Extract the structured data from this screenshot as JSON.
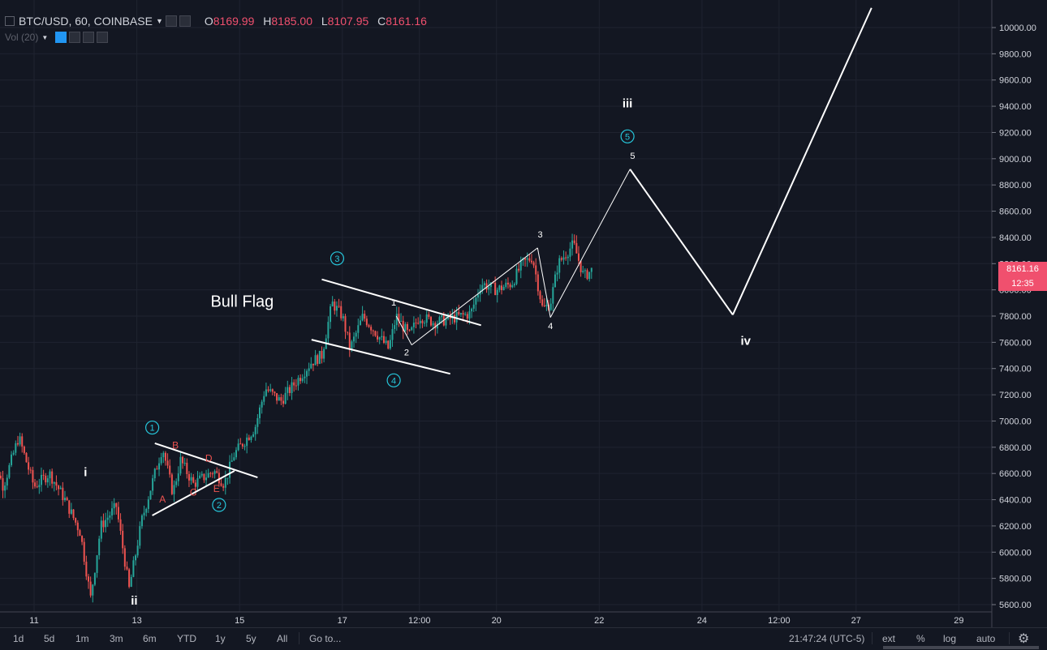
{
  "header": {
    "symbol": "BTC/USD, 60, COINBASE",
    "ohlc": [
      {
        "key": "O",
        "value": "8169.99"
      },
      {
        "key": "H",
        "value": "8185.00"
      },
      {
        "key": "L",
        "value": "8107.95"
      },
      {
        "key": "C",
        "value": "8161.16"
      }
    ]
  },
  "volume_indicator": {
    "label": "Vol (20)"
  },
  "price_label": {
    "value": "8161.16",
    "countdown": "12:35"
  },
  "colors": {
    "background": "#131722",
    "up": "#26a69a",
    "down": "#ef5350",
    "grid": "#1f2330",
    "accent": "#26c6da",
    "label": "#f0506e"
  },
  "bottom_toolbar": {
    "timeframes": [
      "1d",
      "5d",
      "1m",
      "3m",
      "6m",
      "YTD",
      "1y",
      "5y",
      "All"
    ],
    "goto": "Go to...",
    "clock": "21:47:24 (UTC-5)",
    "options": [
      "ext",
      "%",
      "log",
      "auto"
    ],
    "settings_icon": "gear-icon"
  },
  "chart_data": {
    "type": "candlestick",
    "title": "BTC/USD, 60, COINBASE",
    "xlabel": "",
    "ylabel": "",
    "ylim": [
      5560,
      10100
    ],
    "y_ticks": [
      "5600.00",
      "5800.00",
      "6000.00",
      "6200.00",
      "6400.00",
      "6600.00",
      "6800.00",
      "7000.00",
      "7200.00",
      "7400.00",
      "7600.00",
      "7800.00",
      "8000.00",
      "8200.00",
      "8400.00",
      "8600.00",
      "8800.00",
      "9000.00",
      "9200.00",
      "9400.00",
      "9600.00",
      "9800.00",
      "10000.00"
    ],
    "x_ticks": [
      "11",
      "13",
      "15",
      "17",
      "12:00",
      "20",
      "22",
      "24",
      "12:00",
      "27",
      "29"
    ],
    "price_path": [
      {
        "day": 10.1,
        "price": 6850
      },
      {
        "day": 10.4,
        "price": 6500
      },
      {
        "day": 10.7,
        "price": 6880
      },
      {
        "day": 11.0,
        "price": 6500
      },
      {
        "day": 11.3,
        "price": 6600
      },
      {
        "day": 11.6,
        "price": 6400
      },
      {
        "day": 11.9,
        "price": 6150
      },
      {
        "day": 12.1,
        "price": 5650
      },
      {
        "day": 12.3,
        "price": 6200
      },
      {
        "day": 12.6,
        "price": 6350
      },
      {
        "day": 12.85,
        "price": 5720
      },
      {
        "day": 13.1,
        "price": 6250
      },
      {
        "day": 13.35,
        "price": 6600
      },
      {
        "day": 13.5,
        "price": 6800
      },
      {
        "day": 13.7,
        "price": 6450
      },
      {
        "day": 13.85,
        "price": 6700
      },
      {
        "day": 14.1,
        "price": 6520
      },
      {
        "day": 14.5,
        "price": 6620
      },
      {
        "day": 14.7,
        "price": 6520
      },
      {
        "day": 14.9,
        "price": 6750
      },
      {
        "day": 15.3,
        "price": 6950
      },
      {
        "day": 15.5,
        "price": 7250
      },
      {
        "day": 15.8,
        "price": 7150
      },
      {
        "day": 16.1,
        "price": 7300
      },
      {
        "day": 16.4,
        "price": 7450
      },
      {
        "day": 16.6,
        "price": 7500
      },
      {
        "day": 16.8,
        "price": 7900
      },
      {
        "day": 17.0,
        "price": 7800
      },
      {
        "day": 17.15,
        "price": 7550
      },
      {
        "day": 17.4,
        "price": 7800
      },
      {
        "day": 17.6,
        "price": 7700
      },
      {
        "day": 17.9,
        "price": 7550
      },
      {
        "day": 18.05,
        "price": 7800
      },
      {
        "day": 18.3,
        "price": 7650
      },
      {
        "day": 18.5,
        "price": 7800
      },
      {
        "day": 18.8,
        "price": 7750
      },
      {
        "day": 19.1,
        "price": 7780
      },
      {
        "day": 19.5,
        "price": 7820
      },
      {
        "day": 19.7,
        "price": 8050
      },
      {
        "day": 20.0,
        "price": 8000
      },
      {
        "day": 20.3,
        "price": 8050
      },
      {
        "day": 20.5,
        "price": 8200
      },
      {
        "day": 20.7,
        "price": 8250
      },
      {
        "day": 20.9,
        "price": 7850
      },
      {
        "day": 21.05,
        "price": 7900
      },
      {
        "day": 21.2,
        "price": 8200
      },
      {
        "day": 21.5,
        "price": 8350
      },
      {
        "day": 21.7,
        "price": 8100
      },
      {
        "day": 21.85,
        "price": 8150
      }
    ],
    "trendlines": [
      {
        "from": {
          "day": 13.3,
          "price": 6280
        },
        "to": {
          "day": 14.9,
          "price": 6620
        }
      },
      {
        "from": {
          "day": 13.35,
          "price": 6830
        },
        "to": {
          "day": 15.35,
          "price": 6570
        }
      },
      {
        "from": {
          "day": 16.4,
          "price": 7620
        },
        "to": {
          "day": 19.1,
          "price": 7360
        }
      },
      {
        "from": {
          "day": 16.6,
          "price": 8080
        },
        "to": {
          "day": 19.7,
          "price": 7730
        }
      }
    ],
    "wave_path": [
      {
        "day": 18.05,
        "price": 7800
      },
      {
        "day": 18.35,
        "price": 7580
      },
      {
        "day": 20.8,
        "price": 8320
      },
      {
        "day": 21.05,
        "price": 7790
      },
      {
        "day": 22.6,
        "price": 8920
      },
      {
        "day": 24.6,
        "price": 7810
      },
      {
        "day": 27.3,
        "price": 10150
      }
    ],
    "annotations": [
      {
        "text": "Bull Flag",
        "day": 15.05,
        "price": 7870,
        "style": "title"
      },
      {
        "text": "i",
        "day": 12.0,
        "price": 6580,
        "style": "wave-roman"
      },
      {
        "text": "ii",
        "day": 12.95,
        "price": 5600,
        "style": "wave-roman"
      },
      {
        "text": "iii",
        "day": 22.55,
        "price": 9390,
        "style": "wave-roman"
      },
      {
        "text": "iv",
        "day": 24.85,
        "price": 7580,
        "style": "wave-roman"
      },
      {
        "text": "1",
        "day": 13.3,
        "price": 6950,
        "style": "wave-circle"
      },
      {
        "text": "2",
        "day": 14.6,
        "price": 6360,
        "style": "wave-circle"
      },
      {
        "text": "3",
        "day": 16.9,
        "price": 8240,
        "style": "wave-circle"
      },
      {
        "text": "4",
        "day": 18.0,
        "price": 7310,
        "style": "wave-circle"
      },
      {
        "text": "5",
        "day": 22.55,
        "price": 9170,
        "style": "wave-circle"
      },
      {
        "text": "A",
        "day": 13.5,
        "price": 6380,
        "style": "flag-letter"
      },
      {
        "text": "B",
        "day": 13.75,
        "price": 6790,
        "style": "flag-letter"
      },
      {
        "text": "C",
        "day": 14.1,
        "price": 6430,
        "style": "flag-letter"
      },
      {
        "text": "D",
        "day": 14.4,
        "price": 6690,
        "style": "flag-letter"
      },
      {
        "text": "E",
        "day": 14.55,
        "price": 6460,
        "style": "flag-letter"
      },
      {
        "text": "1",
        "day": 18.0,
        "price": 7880,
        "style": "wave-number"
      },
      {
        "text": "2",
        "day": 18.25,
        "price": 7500,
        "style": "wave-number"
      },
      {
        "text": "3",
        "day": 20.85,
        "price": 8400,
        "style": "wave-number"
      },
      {
        "text": "4",
        "day": 21.05,
        "price": 7700,
        "style": "wave-number"
      },
      {
        "text": "5",
        "day": 22.65,
        "price": 9000,
        "style": "wave-number"
      }
    ],
    "legend": "none",
    "grid": true
  }
}
